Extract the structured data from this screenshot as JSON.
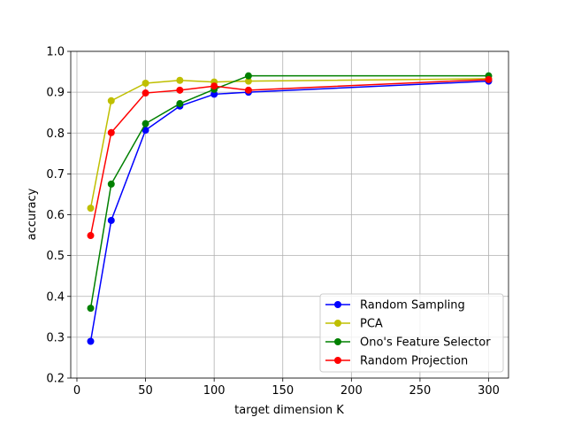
{
  "chart_data": {
    "type": "line",
    "xlabel": "target dimension K",
    "ylabel": "accuracy",
    "x": [
      10,
      25,
      50,
      75,
      100,
      125,
      300
    ],
    "series": [
      {
        "name": "Random Sampling",
        "color": "#0000ff",
        "values": [
          0.29,
          0.586,
          0.807,
          0.866,
          0.895,
          0.9,
          0.927
        ]
      },
      {
        "name": "PCA",
        "color": "#bfbf00",
        "values": [
          0.616,
          0.879,
          0.922,
          0.929,
          0.925,
          0.927,
          0.933
        ]
      },
      {
        "name": "Ono's Feature Selector",
        "color": "#008000",
        "values": [
          0.371,
          0.675,
          0.823,
          0.872,
          0.907,
          0.94,
          0.94
        ]
      },
      {
        "name": "Random Projection",
        "color": "#ff0000",
        "values": [
          0.549,
          0.801,
          0.898,
          0.905,
          0.915,
          0.905,
          0.931
        ]
      }
    ],
    "xlim": [
      -4.5,
      314.5
    ],
    "xticks": [
      0,
      50,
      100,
      150,
      200,
      250,
      300
    ],
    "ylim": [
      0.2,
      1.0
    ],
    "yticks": [
      0.2,
      0.3,
      0.4,
      0.5,
      0.6,
      0.7,
      0.8,
      0.9,
      {
        "value": 1.0,
        "label": "1.0"
      }
    ],
    "grid": true,
    "legend": "lower right"
  }
}
